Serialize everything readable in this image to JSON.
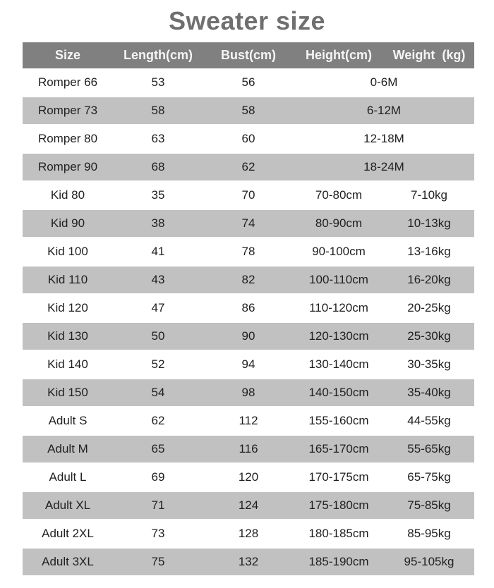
{
  "colors": {
    "title_text": "#6f6f6f",
    "header_bg": "#808080",
    "header_text": "#f5f5f5",
    "row_bg_white": "#ffffff",
    "row_bg_gray": "#c1c1c1",
    "row_text": "#1f1f1f"
  },
  "chart_data": {
    "type": "table",
    "title": "Sweater size",
    "columns": [
      "Size",
      "Length(cm)",
      "Bust(cm)",
      "Height(cm)",
      "Weight  (kg)"
    ],
    "rows": [
      {
        "cells": [
          "Romper 66",
          "53",
          "56",
          "0-6M"
        ],
        "merged_last_two": true,
        "shaded": false
      },
      {
        "cells": [
          "Romper 73",
          "58",
          "58",
          "6-12M"
        ],
        "merged_last_two": true,
        "shaded": true
      },
      {
        "cells": [
          "Romper 80",
          "63",
          "60",
          "12-18M"
        ],
        "merged_last_two": true,
        "shaded": false
      },
      {
        "cells": [
          "Romper 90",
          "68",
          "62",
          "18-24M"
        ],
        "merged_last_two": true,
        "shaded": true
      },
      {
        "cells": [
          "Kid 80",
          "35",
          "70",
          "70-80cm",
          "7-10kg"
        ],
        "merged_last_two": false,
        "shaded": false
      },
      {
        "cells": [
          "Kid 90",
          "38",
          "74",
          "80-90cm",
          "10-13kg"
        ],
        "merged_last_two": false,
        "shaded": true
      },
      {
        "cells": [
          "Kid 100",
          "41",
          "78",
          "90-100cm",
          "13-16kg"
        ],
        "merged_last_two": false,
        "shaded": false
      },
      {
        "cells": [
          "Kid 110",
          "43",
          "82",
          "100-110cm",
          "16-20kg"
        ],
        "merged_last_two": false,
        "shaded": true
      },
      {
        "cells": [
          "Kid 120",
          "47",
          "86",
          "110-120cm",
          "20-25kg"
        ],
        "merged_last_two": false,
        "shaded": false
      },
      {
        "cells": [
          "Kid 130",
          "50",
          "90",
          "120-130cm",
          "25-30kg"
        ],
        "merged_last_two": false,
        "shaded": true
      },
      {
        "cells": [
          "Kid 140",
          "52",
          "94",
          "130-140cm",
          "30-35kg"
        ],
        "merged_last_two": false,
        "shaded": false
      },
      {
        "cells": [
          "Kid 150",
          "54",
          "98",
          "140-150cm",
          "35-40kg"
        ],
        "merged_last_two": false,
        "shaded": true
      },
      {
        "cells": [
          "Adult S",
          "62",
          "112",
          "155-160cm",
          "44-55kg"
        ],
        "merged_last_two": false,
        "shaded": false
      },
      {
        "cells": [
          "Adult M",
          "65",
          "116",
          "165-170cm",
          "55-65kg"
        ],
        "merged_last_two": false,
        "shaded": true
      },
      {
        "cells": [
          "Adult L",
          "69",
          "120",
          "170-175cm",
          "65-75kg"
        ],
        "merged_last_two": false,
        "shaded": false
      },
      {
        "cells": [
          "Adult XL",
          "71",
          "124",
          "175-180cm",
          "75-85kg"
        ],
        "merged_last_two": false,
        "shaded": true
      },
      {
        "cells": [
          "Adult 2XL",
          "73",
          "128",
          "180-185cm",
          "85-95kg"
        ],
        "merged_last_two": false,
        "shaded": false
      },
      {
        "cells": [
          "Adult 3XL",
          "75",
          "132",
          "185-190cm",
          "95-105kg"
        ],
        "merged_last_two": false,
        "shaded": true
      }
    ]
  }
}
